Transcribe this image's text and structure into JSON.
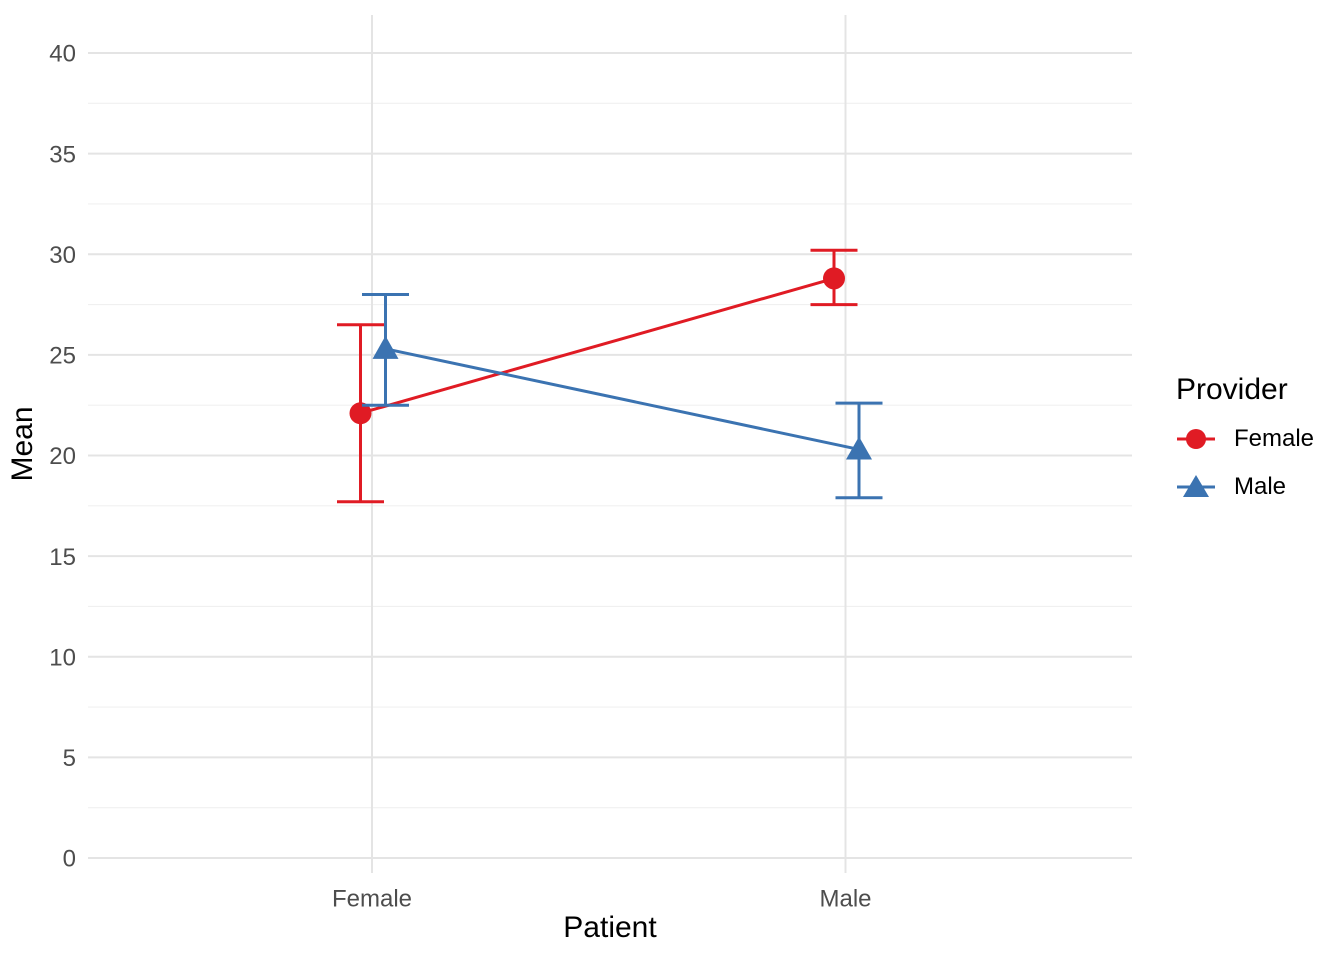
{
  "chart_data": {
    "type": "line",
    "subtype": "interaction-means-with-error-bars",
    "xlabel": "Patient",
    "ylabel": "Mean",
    "categories": [
      "Female",
      "Male"
    ],
    "series": [
      {
        "name": "Female",
        "marker": "circle",
        "color": "#E01B24",
        "means": [
          22.1,
          28.8
        ],
        "ci_low": [
          17.7,
          27.5
        ],
        "ci_high": [
          26.5,
          30.2
        ]
      },
      {
        "name": "Male",
        "marker": "triangle",
        "color": "#3B73B1",
        "means": [
          25.3,
          20.3
        ],
        "ci_low": [
          22.5,
          17.9
        ],
        "ci_high": [
          28.0,
          22.6
        ]
      }
    ],
    "ylim": [
      0,
      40
    ],
    "yticks": [
      0,
      5,
      10,
      15,
      20,
      25,
      30,
      35,
      40
    ],
    "minor_yticks": [
      2.5,
      7.5,
      12.5,
      17.5,
      22.5,
      27.5,
      32.5,
      37.5
    ],
    "grid": "major+minor horizontal, major vertical at categories",
    "legend_title": "Provider",
    "legend_position": "right",
    "colors": {
      "grid_major": "#E4E4E4",
      "grid_minor": "#F0F0F0",
      "tick_label": "#4D4D4D",
      "title": "#000000",
      "background": "#FFFFFF"
    }
  }
}
